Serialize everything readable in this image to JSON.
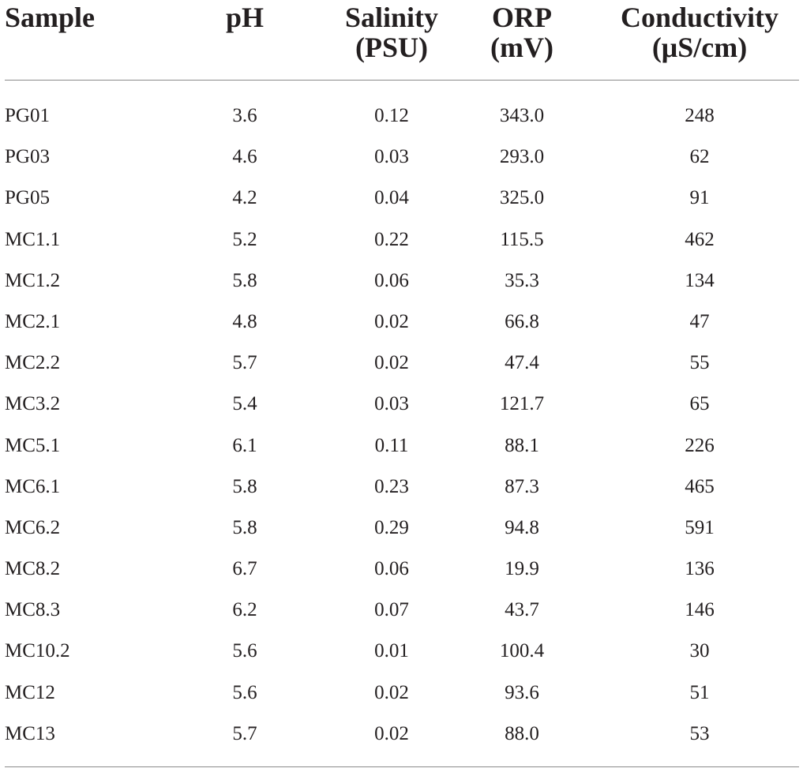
{
  "table": {
    "headers": {
      "sample": [
        "Sample"
      ],
      "ph": [
        "pH"
      ],
      "salinity": [
        "Salinity",
        "(PSU)"
      ],
      "orp": [
        "ORP",
        "(mV)"
      ],
      "conductivity": [
        "Conductivity",
        "(μS/cm)"
      ]
    },
    "rows": [
      [
        "PG01",
        "3.6",
        "0.12",
        "343.0",
        "248"
      ],
      [
        "PG03",
        "4.6",
        "0.03",
        "293.0",
        "62"
      ],
      [
        "PG05",
        "4.2",
        "0.04",
        "325.0",
        "91"
      ],
      [
        "MC1.1",
        "5.2",
        "0.22",
        "115.5",
        "462"
      ],
      [
        "MC1.2",
        "5.8",
        "0.06",
        "35.3",
        "134"
      ],
      [
        "MC2.1",
        "4.8",
        "0.02",
        "66.8",
        "47"
      ],
      [
        "MC2.2",
        "5.7",
        "0.02",
        "47.4",
        "55"
      ],
      [
        "MC3.2",
        "5.4",
        "0.03",
        "121.7",
        "65"
      ],
      [
        "MC5.1",
        "6.1",
        "0.11",
        "88.1",
        "226"
      ],
      [
        "MC6.1",
        "5.8",
        "0.23",
        "87.3",
        "465"
      ],
      [
        "MC6.2",
        "5.8",
        "0.29",
        "94.8",
        "591"
      ],
      [
        "MC8.2",
        "6.7",
        "0.06",
        "19.9",
        "136"
      ],
      [
        "MC8.3",
        "6.2",
        "0.07",
        "43.7",
        "146"
      ],
      [
        "MC10.2",
        "5.6",
        "0.01",
        "100.4",
        "30"
      ],
      [
        "MC12",
        "5.6",
        "0.02",
        "93.6",
        "51"
      ],
      [
        "MC13",
        "5.7",
        "0.02",
        "88.0",
        "53"
      ]
    ]
  }
}
